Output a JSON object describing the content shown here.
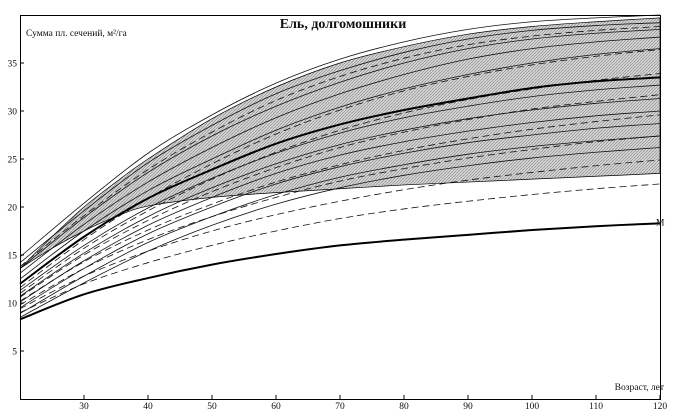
{
  "chart_data": {
    "type": "line",
    "title": "Ель, долгомошники",
    "ylabel": "Сумма пл. сечений, м²/га",
    "xlabel": "Возраст, лет",
    "xlim": [
      20,
      120
    ],
    "ylim": [
      0,
      40
    ],
    "x_ticks": [
      30,
      40,
      50,
      60,
      70,
      80,
      90,
      100,
      110,
      120
    ],
    "y_ticks": [
      5,
      10,
      15,
      20,
      25,
      30,
      35
    ],
    "grid": false,
    "band": {
      "x": [
        20,
        25,
        30,
        35,
        40,
        50,
        60,
        70,
        80,
        90,
        100,
        110,
        120
      ],
      "lower": [
        13.6,
        15.7,
        17.5,
        19.0,
        20.1,
        21.0,
        21.5,
        21.9,
        22.3,
        22.6,
        22.9,
        23.2,
        23.5
      ],
      "upper": [
        13.6,
        16.9,
        20.0,
        22.6,
        25.0,
        29.2,
        32.5,
        35.0,
        36.7,
        38.0,
        38.8,
        39.3,
        39.7
      ]
    },
    "series": [
      {
        "style": "thick",
        "x": [
          20,
          30,
          40,
          50,
          60,
          70,
          80,
          90,
          100,
          110,
          120
        ],
        "values": [
          12.0,
          16.9,
          20.9,
          23.9,
          26.6,
          28.6,
          30.1,
          31.3,
          32.4,
          33.1,
          33.5
        ]
      },
      {
        "style": "thick",
        "label": "M",
        "x": [
          20,
          30,
          40,
          50,
          60,
          70,
          80,
          90,
          100,
          110,
          120
        ],
        "values": [
          8.3,
          10.9,
          12.6,
          14.0,
          15.1,
          16.0,
          16.6,
          17.1,
          17.6,
          18.0,
          18.3
        ]
      }
    ],
    "family_solid": {
      "x": [
        20,
        30,
        40,
        50,
        60,
        70,
        80,
        90,
        100,
        110,
        120
      ],
      "curves": [
        [
          14.8,
          20.4,
          25.6,
          29.6,
          32.9,
          35.4,
          37.2,
          38.5,
          39.3,
          39.7,
          40.0
        ],
        [
          14.2,
          19.6,
          24.6,
          28.5,
          31.8,
          34.2,
          36.1,
          37.5,
          38.4,
          38.9,
          39.2
        ],
        [
          13.6,
          18.9,
          23.6,
          27.4,
          30.5,
          33.0,
          35.0,
          36.5,
          37.5,
          38.1,
          38.5
        ],
        [
          13.1,
          18.2,
          22.6,
          26.2,
          29.3,
          31.8,
          33.8,
          35.4,
          36.5,
          37.2,
          37.7
        ],
        [
          12.5,
          17.5,
          21.7,
          25.0,
          28.0,
          30.4,
          32.3,
          33.8,
          35.0,
          35.9,
          36.5
        ],
        [
          11.3,
          16.0,
          19.9,
          23.0,
          25.6,
          27.7,
          29.3,
          30.5,
          31.5,
          32.2,
          32.7
        ],
        [
          10.7,
          15.2,
          19.0,
          22.0,
          24.5,
          26.5,
          28.0,
          29.2,
          30.1,
          30.8,
          31.3
        ],
        [
          10.1,
          14.4,
          18.1,
          21.0,
          23.5,
          25.4,
          26.8,
          27.9,
          28.8,
          29.5,
          30.0
        ],
        [
          9.5,
          13.6,
          17.2,
          20.0,
          22.4,
          24.2,
          25.6,
          26.7,
          27.5,
          28.2,
          28.7
        ],
        [
          8.9,
          12.8,
          16.3,
          19.0,
          21.3,
          23.1,
          24.4,
          25.5,
          26.3,
          26.9,
          27.4
        ],
        [
          8.5,
          12.1,
          15.4,
          18.1,
          20.3,
          22.0,
          23.3,
          24.3,
          25.1,
          25.7,
          26.2
        ]
      ]
    },
    "family_dashed": {
      "x": [
        20,
        30,
        40,
        50,
        60,
        70,
        80,
        90,
        100,
        110,
        120
      ],
      "curves": [
        [
          9.0,
          12.0,
          14.2,
          16.0,
          17.5,
          18.8,
          19.8,
          20.6,
          21.3,
          21.9,
          22.4
        ],
        [
          9.4,
          12.8,
          15.4,
          17.5,
          19.2,
          20.6,
          21.8,
          22.8,
          23.6,
          24.3,
          24.9
        ],
        [
          9.8,
          13.6,
          16.6,
          19.0,
          21.0,
          22.7,
          24.0,
          25.1,
          26.0,
          26.8,
          27.4
        ],
        [
          10.2,
          14.3,
          17.6,
          20.3,
          22.6,
          24.4,
          25.9,
          27.1,
          28.1,
          28.9,
          29.6
        ],
        [
          10.6,
          15.0,
          18.6,
          21.6,
          24.1,
          26.2,
          27.8,
          29.1,
          30.2,
          31.0,
          31.7
        ],
        [
          11.0,
          15.7,
          19.6,
          22.9,
          25.7,
          28.0,
          29.8,
          31.2,
          32.3,
          33.2,
          33.9
        ],
        [
          11.6,
          16.6,
          20.9,
          24.5,
          27.6,
          30.1,
          32.1,
          33.6,
          34.8,
          35.7,
          36.4
        ],
        [
          13.8,
          19.1,
          23.9,
          27.8,
          31.1,
          33.6,
          35.5,
          36.9,
          37.8,
          38.4,
          38.8
        ]
      ]
    }
  }
}
